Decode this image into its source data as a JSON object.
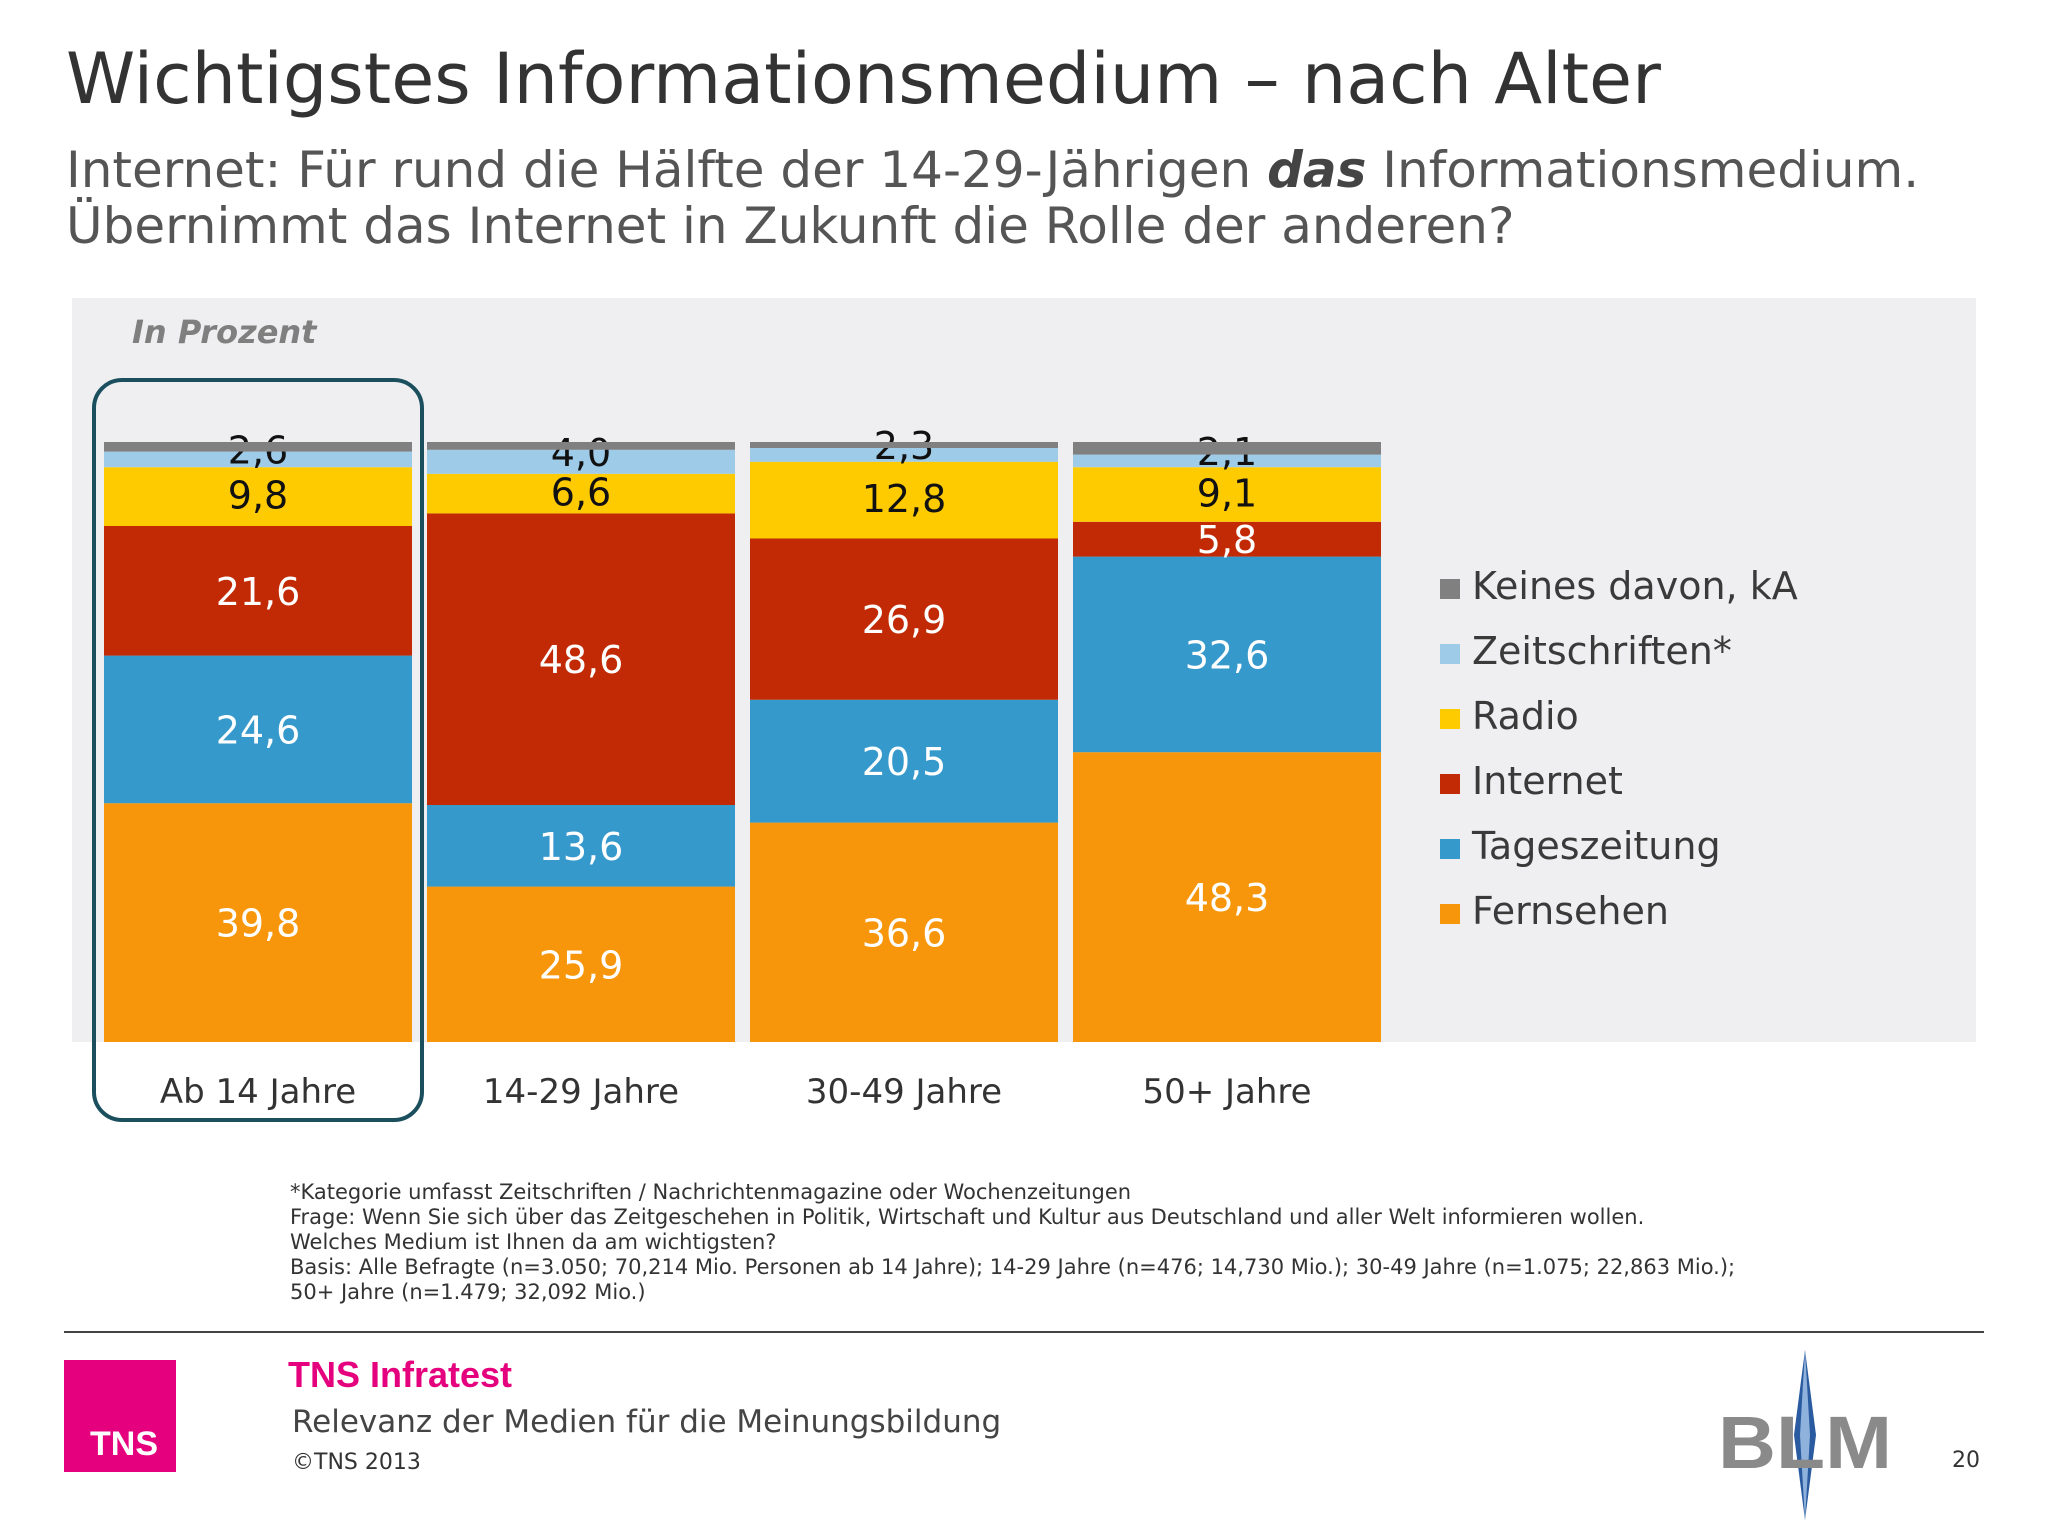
{
  "header": {
    "title": "Wichtigstes Informationsmedium – nach Alter",
    "subtitle_line1_before": "Internet: Für rund die Hälfte der 14-29-Jährigen ",
    "subtitle_line1_emphasis": "das",
    "subtitle_line1_after": " Informationsmedium.",
    "subtitle_line2": "Übernimmt das Internet in Zukunft die Rolle der anderen?"
  },
  "chart_data": {
    "type": "bar",
    "stacked": true,
    "unit_label": "In Prozent",
    "categories": [
      "Ab 14 Jahre",
      "14-29 Jahre",
      "30-49 Jahre",
      "50+ Jahre"
    ],
    "highlighted_category": "Ab 14 Jahre",
    "ylim": [
      0,
      100
    ],
    "grid": false,
    "legend_position": "right",
    "series": [
      {
        "name": "Fernsehen",
        "values": [
          39.8,
          25.9,
          36.6,
          48.3
        ],
        "labels": [
          "39,8",
          "25,9",
          "36,6",
          "48,3"
        ],
        "color": "#f7960a"
      },
      {
        "name": "Tageszeitung",
        "values": [
          24.6,
          13.6,
          20.5,
          32.6
        ],
        "labels": [
          "24,6",
          "13,6",
          "20,5",
          "32,6"
        ],
        "color": "#3699cc"
      },
      {
        "name": "Internet",
        "values": [
          21.6,
          48.6,
          26.9,
          5.8
        ],
        "labels": [
          "21,6",
          "48,6",
          "26,9",
          "5,8"
        ],
        "color": "#c12a04"
      },
      {
        "name": "Radio",
        "values": [
          9.8,
          6.6,
          12.8,
          9.1
        ],
        "labels": [
          "9,8",
          "6,6",
          "12,8",
          "9,1"
        ],
        "color": "#fecb00"
      },
      {
        "name": "Zeitschriften*",
        "values": [
          2.6,
          4.0,
          2.3,
          2.1
        ],
        "labels": [
          "2,6",
          "4,0",
          "2,3",
          "2,1"
        ],
        "color": "#9dcbe8"
      },
      {
        "name": "Keines davon, kA",
        "values": [
          1.6,
          1.3,
          1.0,
          2.1
        ],
        "labels": [
          "",
          "",
          "",
          ""
        ],
        "color": "#808080"
      }
    ]
  },
  "footnotes": [
    "*Kategorie umfasst Zeitschriften / Nachrichtenmagazine oder Wochenzeitungen",
    "Frage: Wenn Sie sich über das Zeitgeschehen in Politik, Wirtschaft und Kultur aus Deutschland und aller Welt informieren wollen.",
    "Welches Medium ist Ihnen da am wichtigsten?",
    "Basis: Alle Befragte (n=3.050; 70,214 Mio. Personen ab 14 Jahre); 14-29 Jahre (n=476; 14,730 Mio.); 30-49 Jahre (n=1.075; 22,863 Mio.);",
    "50+ Jahre (n=1.479; 32,092 Mio.)"
  ],
  "footer": {
    "logo_text": "TNS",
    "company": "TNS Infratest",
    "report_title": "Relevanz der Medien für die Meinungsbildung",
    "copyright": "©TNS 2013",
    "partner_logo_text": "BLM",
    "page_number": "20"
  },
  "colors": {
    "brand_magenta": "#e5007d",
    "highlight_outline": "#1b4f5e",
    "chart_background": "#efeff1"
  }
}
